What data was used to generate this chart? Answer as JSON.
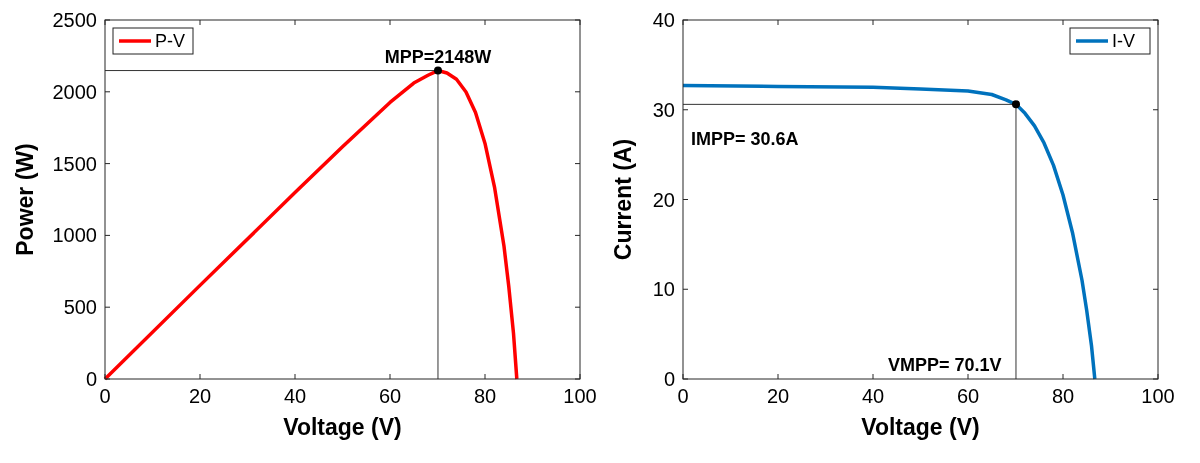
{
  "chart_data": [
    {
      "type": "line",
      "xlabel": "Voltage (V)",
      "ylabel": "Power (W)",
      "xlim": [
        0,
        100
      ],
      "xticks": [
        0,
        20,
        40,
        60,
        80,
        100
      ],
      "ylim": [
        0,
        2500
      ],
      "yticks": [
        0,
        500,
        1000,
        1500,
        2000,
        2500
      ],
      "grid": false,
      "legend": "top left",
      "line_style": "solid",
      "marker": "none",
      "x": [
        0,
        20,
        40,
        50,
        60,
        65,
        68,
        70.1,
        72,
        74,
        76,
        78,
        80,
        82,
        84,
        85,
        86,
        86.7
      ],
      "series": [
        {
          "name": "P-V",
          "color": "#ff0000",
          "values": [
            0,
            652,
            1298,
            1618,
            1926,
            2061,
            2115,
            2148,
            2131,
            2087,
            1999,
            1856,
            1640,
            1337,
            924,
            646,
            318,
            0
          ]
        },
        {
          "type": "scatter",
          "marker": "circle",
          "color": "#000000",
          "values": [
            null,
            null,
            null,
            null,
            null,
            null,
            null,
            2148,
            null,
            null,
            null,
            null,
            null,
            null,
            null,
            null,
            null,
            null
          ],
          "errors": [
            null,
            null,
            null,
            null,
            null,
            null,
            null,
            [
              0,
              2148
            ],
            null,
            null,
            null,
            null,
            null,
            null,
            null,
            null,
            null,
            null
          ],
          "xerrors": [
            null,
            null,
            null,
            null,
            null,
            null,
            null,
            [
              0,
              70.1
            ],
            null,
            null,
            null,
            null,
            null,
            null,
            null,
            null,
            null,
            null
          ]
        }
      ],
      "annotations": [
        {
          "text": "MPP=2148W",
          "x": 70.1,
          "y": 2148
        }
      ]
    },
    {
      "type": "line",
      "xlabel": "Voltage (V)",
      "ylabel": "Current (A)",
      "xlim": [
        0,
        100
      ],
      "xticks": [
        0,
        20,
        40,
        60,
        80,
        100
      ],
      "ylim": [
        0,
        40
      ],
      "yticks": [
        0,
        10,
        20,
        30,
        40
      ],
      "grid": false,
      "legend": "top right",
      "line_style": "solid",
      "marker": "none",
      "x": [
        0,
        20,
        40,
        50,
        60,
        65,
        68,
        70.1,
        72,
        74,
        76,
        78,
        80,
        82,
        84,
        85,
        86,
        86.7
      ],
      "series": [
        {
          "name": "I-V",
          "color": "#0072bd",
          "values": [
            32.7,
            32.6,
            32.5,
            32.3,
            32.1,
            31.7,
            31.1,
            30.6,
            29.6,
            28.2,
            26.3,
            23.8,
            20.5,
            16.3,
            11,
            7.6,
            3.7,
            0
          ]
        },
        {
          "type": "scatter",
          "marker": "circle",
          "color": "#000000",
          "values": [
            null,
            null,
            null,
            null,
            null,
            null,
            null,
            30.6,
            null,
            null,
            null,
            null,
            null,
            null,
            null,
            null,
            null,
            null
          ],
          "errors": [
            null,
            null,
            null,
            null,
            null,
            null,
            null,
            [
              0,
              30.6
            ],
            null,
            null,
            null,
            null,
            null,
            null,
            null,
            null,
            null,
            null
          ],
          "xerrors": [
            null,
            null,
            null,
            null,
            null,
            null,
            null,
            [
              0,
              70.1
            ],
            null,
            null,
            null,
            null,
            null,
            null,
            null,
            null,
            null,
            null
          ]
        }
      ],
      "annotations": [
        "IMPP= 30.6A",
        "VMPP= 70.1V"
      ]
    }
  ]
}
